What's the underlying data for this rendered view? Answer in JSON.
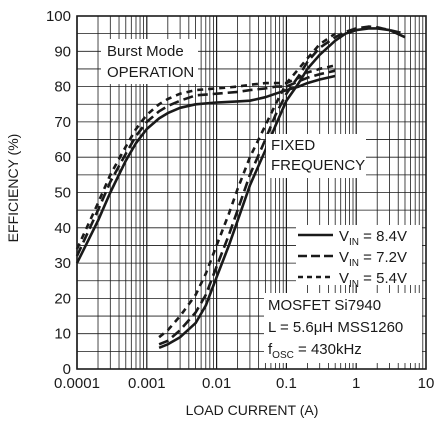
{
  "chart_data": {
    "type": "line",
    "xlabel": "LOAD CURRENT (A)",
    "ylabel": "EFFICIENCY (%)",
    "xscale": "log",
    "xlim": [
      0.0001,
      10
    ],
    "ylim": [
      0,
      100
    ],
    "xticks": [
      "0.0001",
      "0.001",
      "0.01",
      "0.1",
      "1",
      "10"
    ],
    "yticks": [
      "0",
      "10",
      "20",
      "30",
      "40",
      "50",
      "60",
      "70",
      "80",
      "90",
      "100"
    ],
    "grid": true,
    "annotations": {
      "burst_line1": "Burst Mode",
      "burst_line2": "OPERATION",
      "fixed_line1": "FIXED",
      "fixed_line2": "FREQUENCY",
      "cond_line1": "MOSFET Si7940",
      "cond_line2": "L = 5.6μH MSS1260",
      "cond_line3_main": "f",
      "cond_line3_sub": "OSC",
      "cond_line3_rest": " = 430kHz"
    },
    "legend": {
      "placement": "right",
      "entries": [
        {
          "main": "V",
          "sub": "IN",
          "rest": " = 8.4V",
          "style": "solid"
        },
        {
          "main": "V",
          "sub": "IN",
          "rest": " = 7.2V",
          "style": "long-dash"
        },
        {
          "main": "V",
          "sub": "IN",
          "rest": " = 5.4V",
          "style": "short-dash"
        }
      ]
    },
    "series": [
      {
        "name": "VIN = 8.4V, Burst Mode",
        "style": "solid",
        "x": [
          0.0001,
          0.0002,
          0.0003,
          0.0005,
          0.0007,
          0.001,
          0.0015,
          0.002,
          0.003,
          0.005,
          0.01,
          0.02,
          0.03,
          0.05,
          0.07,
          0.1
        ],
        "y": [
          30,
          42,
          50,
          59,
          64,
          68,
          71,
          72.5,
          74,
          75,
          75.5,
          75.8,
          76,
          77,
          78,
          79
        ]
      },
      {
        "name": "VIN = 7.2V, Burst Mode",
        "style": "long-dash",
        "x": [
          0.0001,
          0.0002,
          0.0003,
          0.0005,
          0.0007,
          0.001,
          0.0015,
          0.002,
          0.003,
          0.005,
          0.01,
          0.02,
          0.03,
          0.05,
          0.07,
          0.1
        ],
        "y": [
          32,
          45,
          53,
          61,
          66,
          70,
          73,
          74.5,
          76,
          77.5,
          78,
          78.5,
          79,
          79.5,
          80,
          80
        ]
      },
      {
        "name": "VIN = 5.4V, Burst Mode",
        "style": "short-dash",
        "x": [
          0.0001,
          0.0002,
          0.0003,
          0.0005,
          0.0007,
          0.001,
          0.0015,
          0.002,
          0.003,
          0.005,
          0.01,
          0.02,
          0.03,
          0.05,
          0.07,
          0.1
        ],
        "y": [
          34,
          47,
          55,
          63,
          68,
          72,
          75,
          76.5,
          78,
          79,
          79.5,
          80,
          80.5,
          81,
          81,
          81
        ]
      },
      {
        "name": "VIN = 8.4V, Fixed Frequency",
        "style": "solid",
        "x": [
          0.0015,
          0.002,
          0.003,
          0.005,
          0.007,
          0.01,
          0.015,
          0.02,
          0.03,
          0.05,
          0.07,
          0.1,
          0.15,
          0.2,
          0.3,
          0.5,
          0.7,
          1,
          1.5,
          2,
          3,
          5
        ],
        "y": [
          6,
          7,
          9,
          13,
          18,
          26,
          35,
          42,
          52,
          62,
          69,
          76,
          81,
          85,
          89,
          93,
          95,
          96,
          96.5,
          96.5,
          96,
          94
        ]
      },
      {
        "name": "VIN = 7.2V, Fixed Frequency",
        "style": "long-dash",
        "x": [
          0.0015,
          0.002,
          0.003,
          0.005,
          0.007,
          0.01,
          0.015,
          0.02,
          0.03,
          0.05,
          0.07,
          0.1,
          0.15,
          0.2,
          0.3,
          0.5,
          0.7,
          1,
          1.5,
          2,
          3,
          5
        ],
        "y": [
          7,
          8,
          11,
          16,
          21,
          29,
          38,
          45,
          55,
          65,
          72,
          78,
          83,
          87,
          91,
          94,
          95.5,
          96.5,
          97,
          96.8,
          96,
          95
        ]
      },
      {
        "name": "VIN = 5.4V, Fixed Frequency",
        "style": "short-dash",
        "x": [
          0.0015,
          0.002,
          0.003,
          0.005,
          0.007,
          0.01,
          0.015,
          0.02,
          0.03,
          0.05,
          0.07,
          0.1,
          0.15,
          0.2,
          0.3,
          0.5
        ],
        "y": [
          9,
          11,
          15,
          21,
          27,
          35,
          44,
          51,
          60,
          69,
          75,
          81,
          85,
          88,
          92,
          95
        ]
      },
      {
        "name": "VIN = 8.4V, Burst Mode ext",
        "style": "solid",
        "x": [
          0.1,
          0.15,
          0.2,
          0.3,
          0.5
        ],
        "y": [
          79,
          80,
          81,
          82,
          83
        ]
      },
      {
        "name": "VIN = 7.2V, Burst Mode ext",
        "style": "long-dash",
        "x": [
          0.1,
          0.15,
          0.2,
          0.3,
          0.5
        ],
        "y": [
          80,
          81.5,
          82.5,
          83.5,
          84.5
        ]
      },
      {
        "name": "VIN = 5.4V, Burst Mode ext",
        "style": "short-dash",
        "x": [
          0.1,
          0.15,
          0.2,
          0.3,
          0.5
        ],
        "y": [
          81,
          82.5,
          84,
          85,
          86
        ]
      }
    ]
  }
}
